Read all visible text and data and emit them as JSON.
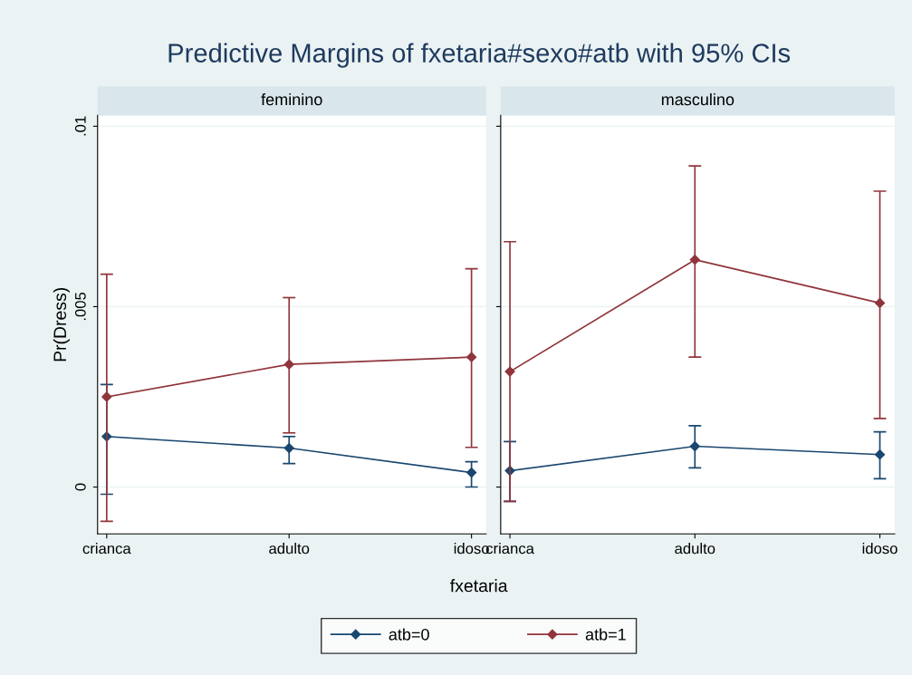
{
  "chart_data": [
    {
      "type": "line",
      "title": "Predictive Margins of fxetaria#sexo#atb with 95% CIs",
      "subtitle": "feminino",
      "xlabel": "fxetaria",
      "ylabel": "Pr(Dress)",
      "categories": [
        "crianca",
        "adulto",
        "idoso"
      ],
      "series": [
        {
          "name": "atb=0",
          "color": "#1a476f",
          "values": [
            0.0014,
            0.00108,
            0.0004
          ],
          "errors": [
            [
              -0.0002,
              0.00284
            ],
            [
              0.00065,
              0.0014
            ],
            [
              0.0,
              0.0007
            ]
          ]
        },
        {
          "name": "atb=1",
          "color": "#90353b",
          "values": [
            0.0025,
            0.0034,
            0.0036
          ],
          "errors": [
            [
              -0.00095,
              0.0059
            ],
            [
              0.0015,
              0.00525
            ],
            [
              0.0011,
              0.00605
            ]
          ]
        }
      ],
      "ylim": [
        -0.0013,
        0.0103
      ],
      "yticks": [
        {
          "value": 0,
          "label": "0"
        },
        {
          "value": 0.005,
          "label": ".005"
        },
        {
          "value": 0.01,
          "label": ".01"
        }
      ],
      "grid": "y",
      "legend": "bottom",
      "marker": "diamond",
      "line_style": "solid"
    },
    {
      "type": "line",
      "subtitle": "masculino",
      "categories": [
        "crianca",
        "adulto",
        "idoso"
      ],
      "series": [
        {
          "color": "#1a476f",
          "values": [
            0.00045,
            0.00113,
            0.0009
          ],
          "errors": [
            [
              -0.0004,
              0.00126
            ],
            [
              0.00053,
              0.0017
            ],
            [
              0.00023,
              0.00153
            ]
          ]
        },
        {
          "color": "#90353b",
          "values": [
            0.0032,
            0.0063,
            0.0051
          ],
          "errors": [
            [
              -0.0004,
              0.0068
            ],
            [
              0.0036,
              0.0089
            ],
            [
              0.0019,
              0.0082
            ]
          ]
        }
      ],
      "ylim": [
        -0.0013,
        0.0103
      ],
      "yticks": [
        0,
        0.005,
        0.01
      ],
      "grid": "y",
      "marker": "diamond",
      "line_style": "solid",
      "tick_labels": "x"
    }
  ]
}
